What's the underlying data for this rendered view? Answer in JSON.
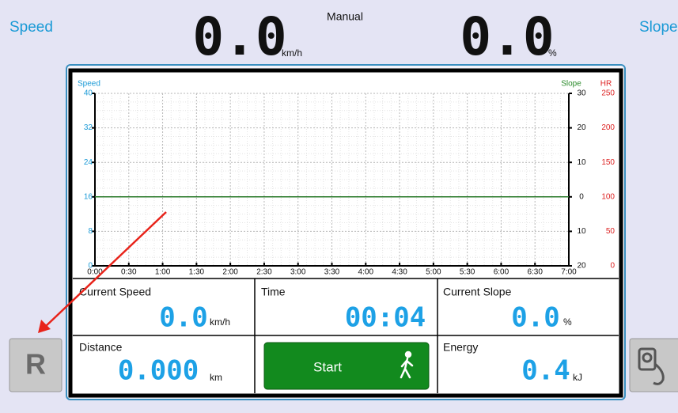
{
  "header": {
    "left_label": "Speed",
    "mode": "Manual",
    "speed_value": "0.0",
    "speed_unit": "km/h",
    "slope_value": "0.0",
    "slope_unit": "%",
    "right_label": "Slope"
  },
  "graph": {
    "left_axis_title": "Speed",
    "slope_axis_title": "Slope",
    "hr_axis_title": "HR",
    "speed_ticks": [
      "40",
      "32",
      "24",
      "16",
      "8",
      "0"
    ],
    "slope_ticks": [
      "30",
      "20",
      "10",
      "0",
      "10",
      "20"
    ],
    "hr_ticks": [
      "250",
      "200",
      "150",
      "100",
      "50",
      "0"
    ],
    "time_ticks": [
      "0:00",
      "0:30",
      "1:00",
      "1:30",
      "2:00",
      "2:30",
      "3:00",
      "3:30",
      "4:00",
      "4:30",
      "5:00",
      "5:30",
      "6:00",
      "6:30",
      "7:00"
    ]
  },
  "panels": {
    "current_speed": {
      "label": "Current Speed",
      "value": "0.0",
      "unit": "km/h"
    },
    "time": {
      "label": "Time",
      "value": "00:04"
    },
    "current_slope": {
      "label": "Current Slope",
      "value": "0.0",
      "unit": "%"
    },
    "distance": {
      "label": "Distance",
      "value": "0.000",
      "unit": "km"
    },
    "start_button": "Start",
    "energy": {
      "label": "Energy",
      "value": "0.4",
      "unit": "kJ"
    }
  },
  "reset_button": "R"
}
